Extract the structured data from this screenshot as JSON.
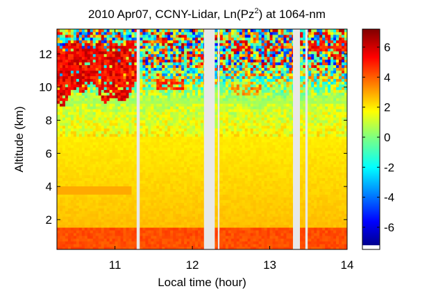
{
  "chart_data": {
    "type": "heatmap",
    "title_main": "2010 Apr07, CCNY-Lidar, Ln(Pz",
    "title_sup": "2",
    "title_tail": ") at 1064-nm",
    "xlabel": "Local time (hour)",
    "ylabel": "Altitude (km)",
    "xlim": [
      10.25,
      14.0
    ],
    "ylim": [
      0.2,
      13.5
    ],
    "x_ticks": [
      {
        "value": 11,
        "label": "11"
      },
      {
        "value": 12,
        "label": "12"
      },
      {
        "value": 13,
        "label": "13"
      },
      {
        "value": 14,
        "label": "14"
      }
    ],
    "y_ticks": [
      {
        "value": 2,
        "label": "2"
      },
      {
        "value": 4,
        "label": "4"
      },
      {
        "value": 6,
        "label": "6"
      },
      {
        "value": 8,
        "label": "8"
      },
      {
        "value": 10,
        "label": "10"
      },
      {
        "value": 12,
        "label": "12"
      }
    ],
    "colorbar": {
      "clim": [
        -7.2,
        7.2
      ],
      "ticks": [
        {
          "value": -6,
          "label": "-6"
        },
        {
          "value": -4,
          "label": "-4"
        },
        {
          "value": -2,
          "label": "-2"
        },
        {
          "value": 0,
          "label": "0"
        },
        {
          "value": 2,
          "label": "2"
        },
        {
          "value": 4,
          "label": "4"
        },
        {
          "value": 6,
          "label": "6"
        }
      ],
      "colormap": "jet"
    },
    "data_gaps": [
      {
        "start": 11.28,
        "end": 11.32
      },
      {
        "start": 12.15,
        "end": 12.29
      },
      {
        "start": 12.33,
        "end": 12.35
      },
      {
        "start": 13.3,
        "end": 13.39
      },
      {
        "start": 13.46,
        "end": 13.49
      }
    ],
    "features": {
      "cloud_layer": {
        "x_range": [
          10.25,
          11.3
        ],
        "base_km": 9.6,
        "top_km": 12.8,
        "value": 5.5
      },
      "cirrus_patches": [
        {
          "x_range": [
            11.55,
            11.9
          ],
          "alt_km": 10.2,
          "value": 4.5
        },
        {
          "x_range": [
            12.5,
            12.9
          ],
          "alt_km": 9.8,
          "value": 3.5
        },
        {
          "x_range": [
            12.55,
            12.75
          ],
          "alt_km": 12.5,
          "value": 5.5
        },
        {
          "x_range": [
            13.5,
            14.0
          ],
          "alt_km": 12.5,
          "value": 5.0
        }
      ],
      "boundary_layer": {
        "top_km": 1.6,
        "value": 4.3
      },
      "aerosol_layer": {
        "x_range": [
          10.25,
          11.2
        ],
        "alt_km": 3.8,
        "value": 3.0
      },
      "noise_region_above_km": 9.0
    }
  }
}
